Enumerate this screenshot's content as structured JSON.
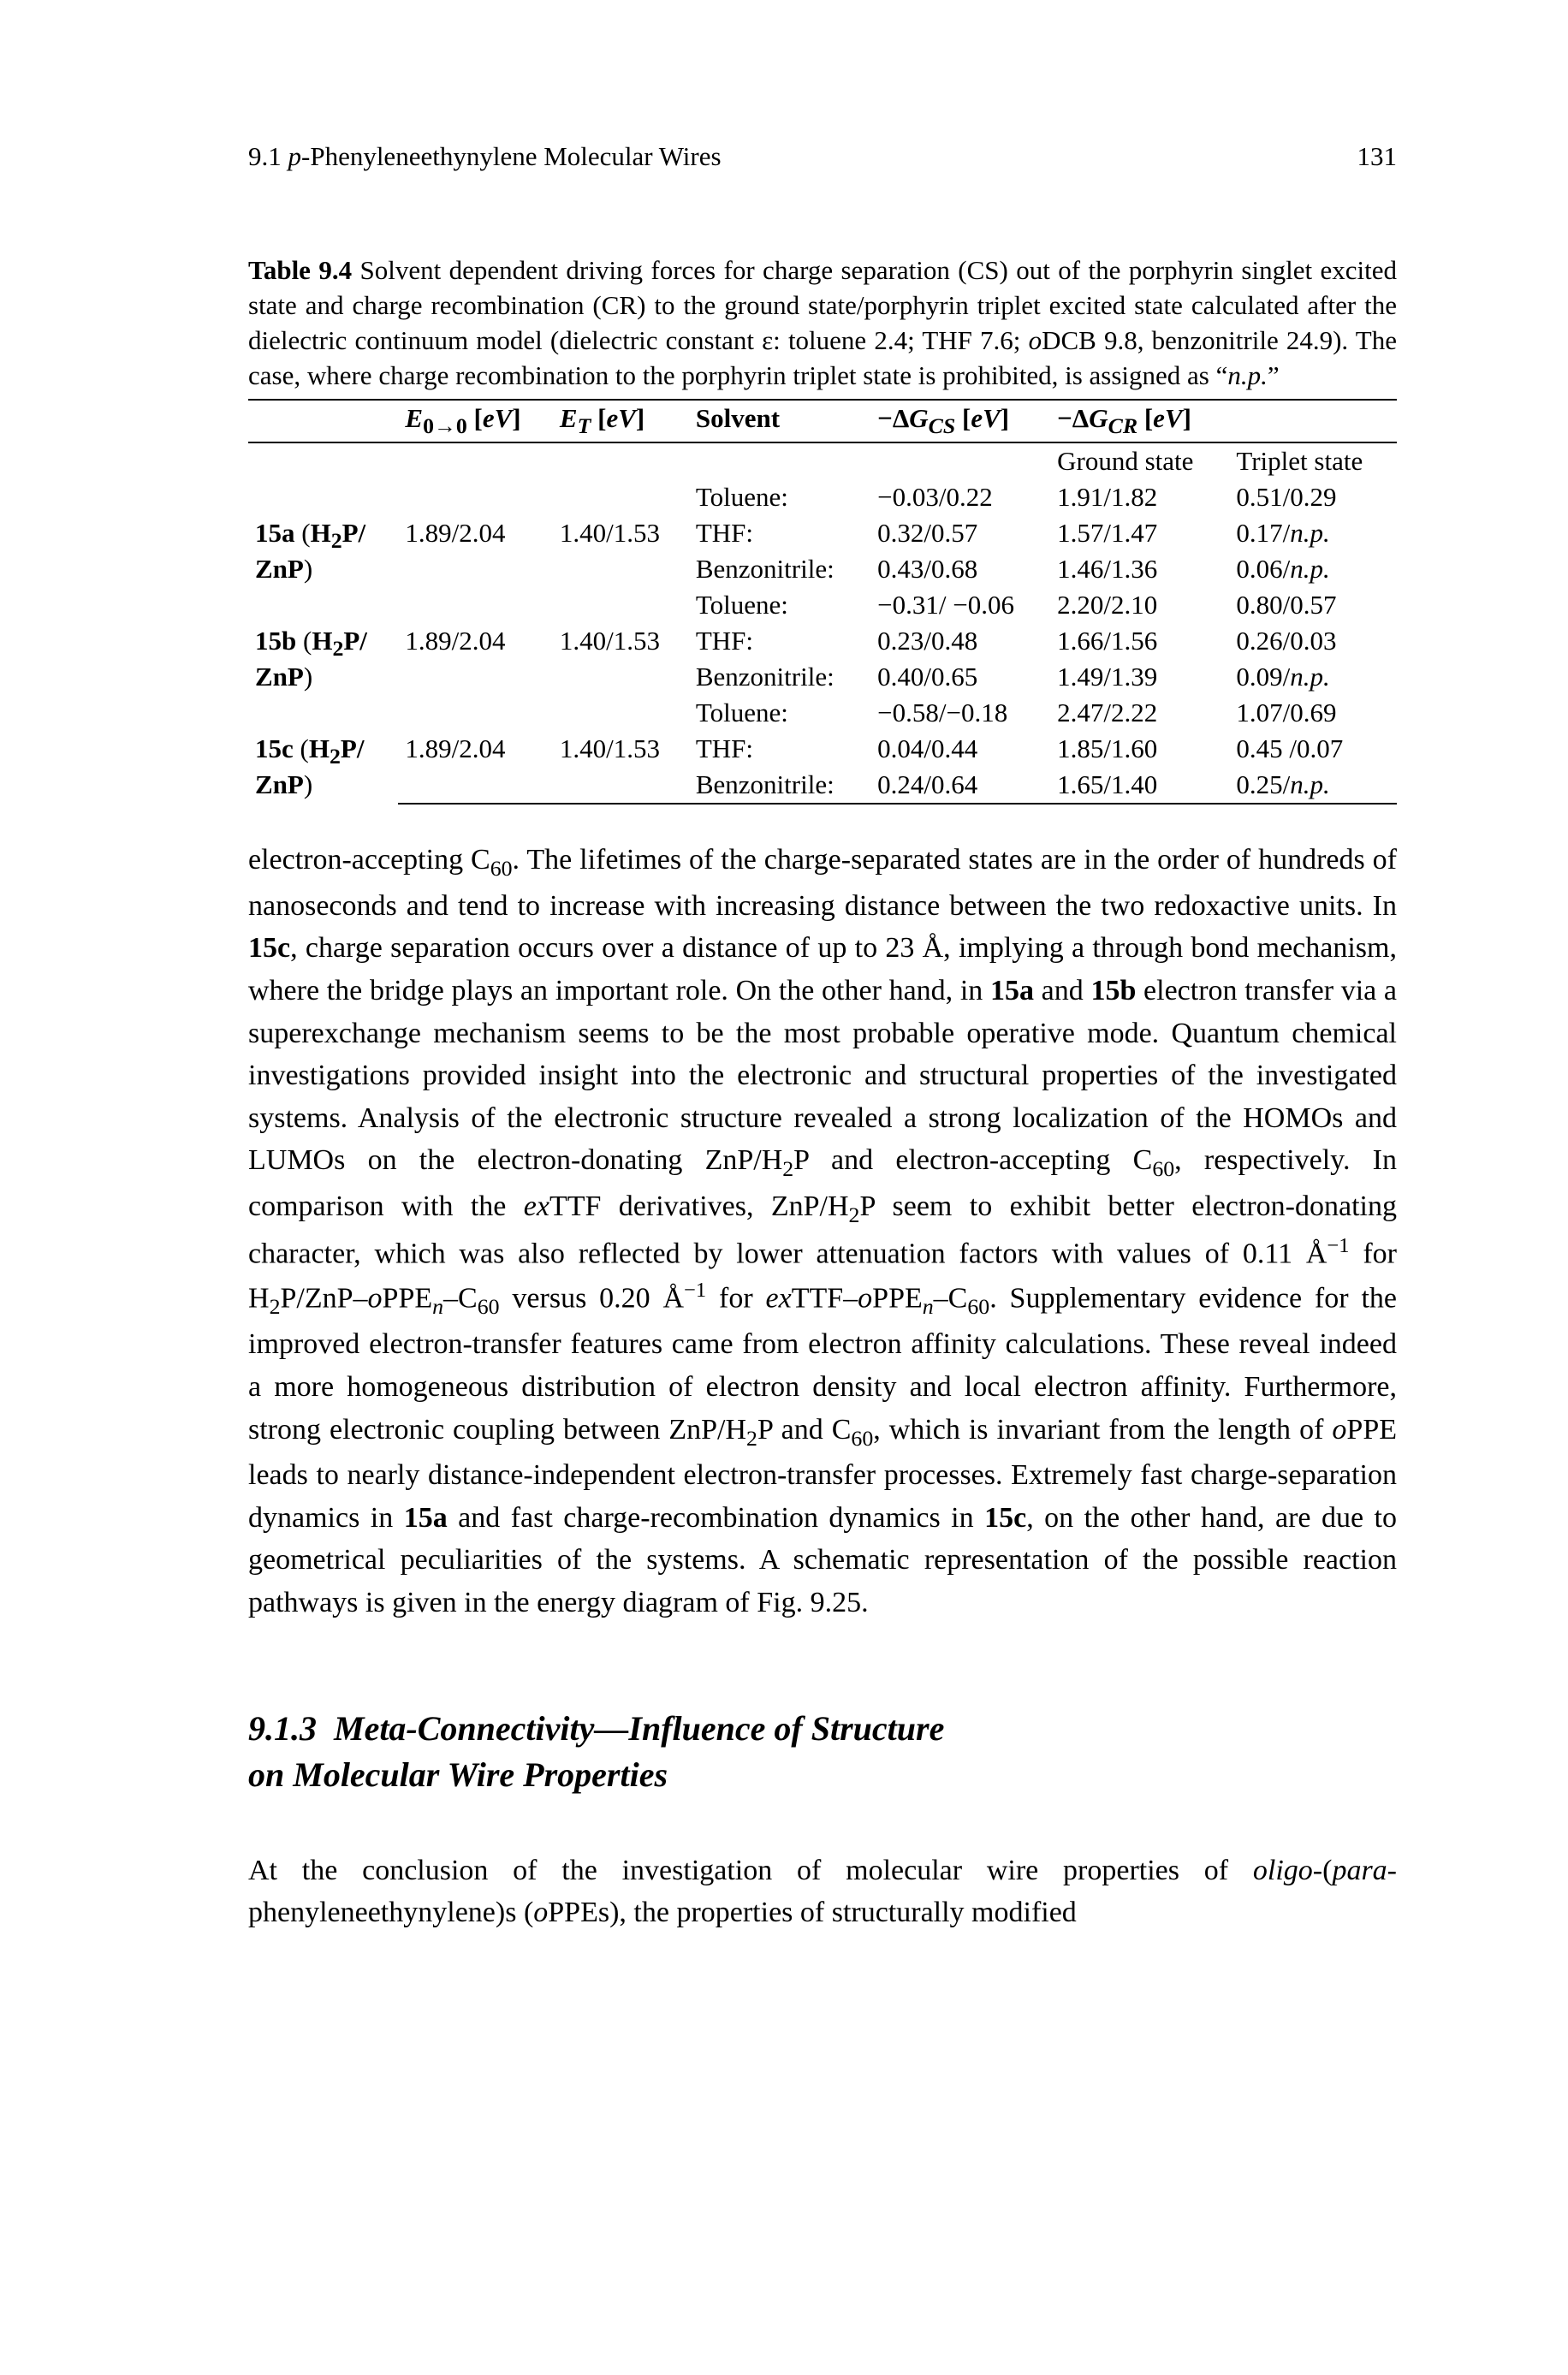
{
  "page": {
    "header_left_prefix": "9.1  ",
    "header_left_italic": "p",
    "header_left_rest": "-Phenyleneethynylene Molecular Wires",
    "page_number": "131"
  },
  "table": {
    "caption_lead": "Table 9.4",
    "caption_rest": "  Solvent dependent driving forces for charge separation (CS) out of the porphyrin singlet excited state and charge recombination (CR) to the ground state/porphyrin triplet excited state calculated after the dielectric continuum model (dielectric constant ε: toluene 2.4; THF 7.6; ",
    "caption_odcb_italic": "o",
    "caption_after_odcb": "DCB 9.8, benzonitrile 24.9). The case, where charge recombination to the porphyrin triplet state is prohibited, is assigned as “",
    "caption_np_italic": "n.p.",
    "caption_tail": "”",
    "head": {
      "c1": "",
      "c2_html": "<span class=\"italic\">E</span><sub>0→0</sub> [<span class=\"italic\">eV</span>]",
      "c3_html": "<span class=\"italic\">E<sub>T</sub></span> [<span class=\"italic\">eV</span>]",
      "c4": "Solvent",
      "c5_html": "−Δ<span class=\"italic\">G<sub>CS</sub></span> [<span class=\"italic\">eV</span>]",
      "c6_html": "−Δ<span class=\"italic\">G<sub>CR</sub></span> [<span class=\"italic\">eV</span>]"
    },
    "subhead": {
      "ground": "Ground state",
      "triplet": "Triplet state"
    },
    "rows": [
      {
        "label_html": "<span class=\"bold\">15a</span> (<span class=\"bold\">H<sub>2</sub>P/<br>ZnP</span>)",
        "e00": "1.89/2.04",
        "et": "1.40/1.53",
        "solvents": [
          "Toluene:",
          "THF:",
          "Benzonitrile:"
        ],
        "dgcs": [
          "−0.03/0.22",
          "0.32/0.57",
          "0.43/0.68"
        ],
        "dgcr_g": [
          "1.91/1.82",
          "1.57/1.47",
          "1.46/1.36"
        ],
        "dgcr_t": [
          "0.51/0.29",
          "0.17/<span class=\"italic\">n.p.</span>",
          "0.06/<span class=\"italic\">n.p.</span>"
        ]
      },
      {
        "label_html": "<span class=\"bold\">15b</span> (<span class=\"bold\">H<sub>2</sub>P/<br>ZnP</span>)",
        "e00": "1.89/2.04",
        "et": "1.40/1.53",
        "solvents": [
          "Toluene:",
          "THF:",
          "Benzonitrile:"
        ],
        "dgcs": [
          "−0.31/ −0.06",
          "0.23/0.48",
          "0.40/0.65"
        ],
        "dgcr_g": [
          "2.20/2.10",
          "1.66/1.56",
          "1.49/1.39"
        ],
        "dgcr_t": [
          "0.80/0.57",
          "0.26/0.03",
          "0.09/<span class=\"italic\">n.p.</span>"
        ]
      },
      {
        "label_html": "<span class=\"bold\">15c</span> (<span class=\"bold\">H<sub>2</sub>P/<br>ZnP</span>)",
        "e00": "1.89/2.04",
        "et": "1.40/1.53",
        "solvents": [
          "Toluene:",
          "THF:",
          "Benzonitrile:"
        ],
        "dgcs": [
          "−0.58/−0.18",
          "0.04/0.44",
          "0.24/0.64"
        ],
        "dgcr_g": [
          "2.47/2.22",
          "1.85/1.60",
          "1.65/1.40"
        ],
        "dgcr_t": [
          "1.07/0.69",
          "0.45 /0.07",
          "0.25/<span class=\"italic\">n.p.</span>"
        ]
      }
    ]
  },
  "body": {
    "para1_html": "electron-accepting C<sub>60</sub>. The lifetimes of the charge-separated states are in the order of hundreds of nanoseconds and tend to increase with increasing distance between the two redoxactive units. In <span class=\"bold\">15c</span>, charge separation occurs over a distance of up to 23&nbsp;Å, implying a through bond mechanism, where the bridge plays an important role. On the other hand, in <span class=\"bold\">15a</span> and <span class=\"bold\">15b</span> electron transfer via a superexchange mechanism seems to be the most probable operative mode. Quantum chemical investigations provided insight into the electronic and structural properties of the investigated systems. Analysis of the electronic structure revealed a strong localization of the HOMOs and LUMOs on the electron-donating ZnP/H<sub>2</sub>P and electron-accepting C<sub>60</sub>, respectively. In comparison with the <span class=\"italic\">ex</span>TTF derivatives, ZnP/H<sub>2</sub>P seem to exhibit better electron-donating character, which was also reflected by lower attenuation factors with values of 0.11&nbsp;Å<sup>−1</sup> for H<sub>2</sub>P/ZnP–<span class=\"italic\">o</span>PPE<sub><span class=\"italic\">n</span></sub>–C<sub>60</sub> versus 0.20&nbsp;Å<sup>−1</sup> for <span class=\"italic\">ex</span>TTF–<span class=\"italic\">o</span>PPE<sub><span class=\"italic\">n</span></sub>–C<sub>60</sub>. Supplementary evidence for the improved electron-transfer features came from electron affinity calculations. These reveal indeed a more homogeneous distribution of electron density and local electron affinity. Furthermore, strong electronic coupling between ZnP/H<sub>2</sub>P and C<sub>60</sub>, which is invariant from the length of <span class=\"italic\">o</span>PPE leads to nearly distance-independent electron-transfer processes. Extremely fast charge-separation dynamics in <span class=\"bold\">15a</span> and fast charge-recombination dynamics in <span class=\"bold\">15c</span>, on the other hand, are due to geometrical peculiarities of the systems. A schematic representation of the possible reaction pathways is given in the energy diagram of Fig.&nbsp;9.25."
  },
  "section": {
    "number": "9.1.3",
    "title_html": "Meta-Connectivity—Influence of Structure<br>on Molecular Wire Properties"
  },
  "para2_html": "At the conclusion of the investigation of molecular wire properties of <span class=\"italic\">oligo</span>-(<span class=\"italic\">para</span>-phenyleneethynylene)s (<span class=\"italic\">o</span>PPEs), the properties of structurally modified"
}
